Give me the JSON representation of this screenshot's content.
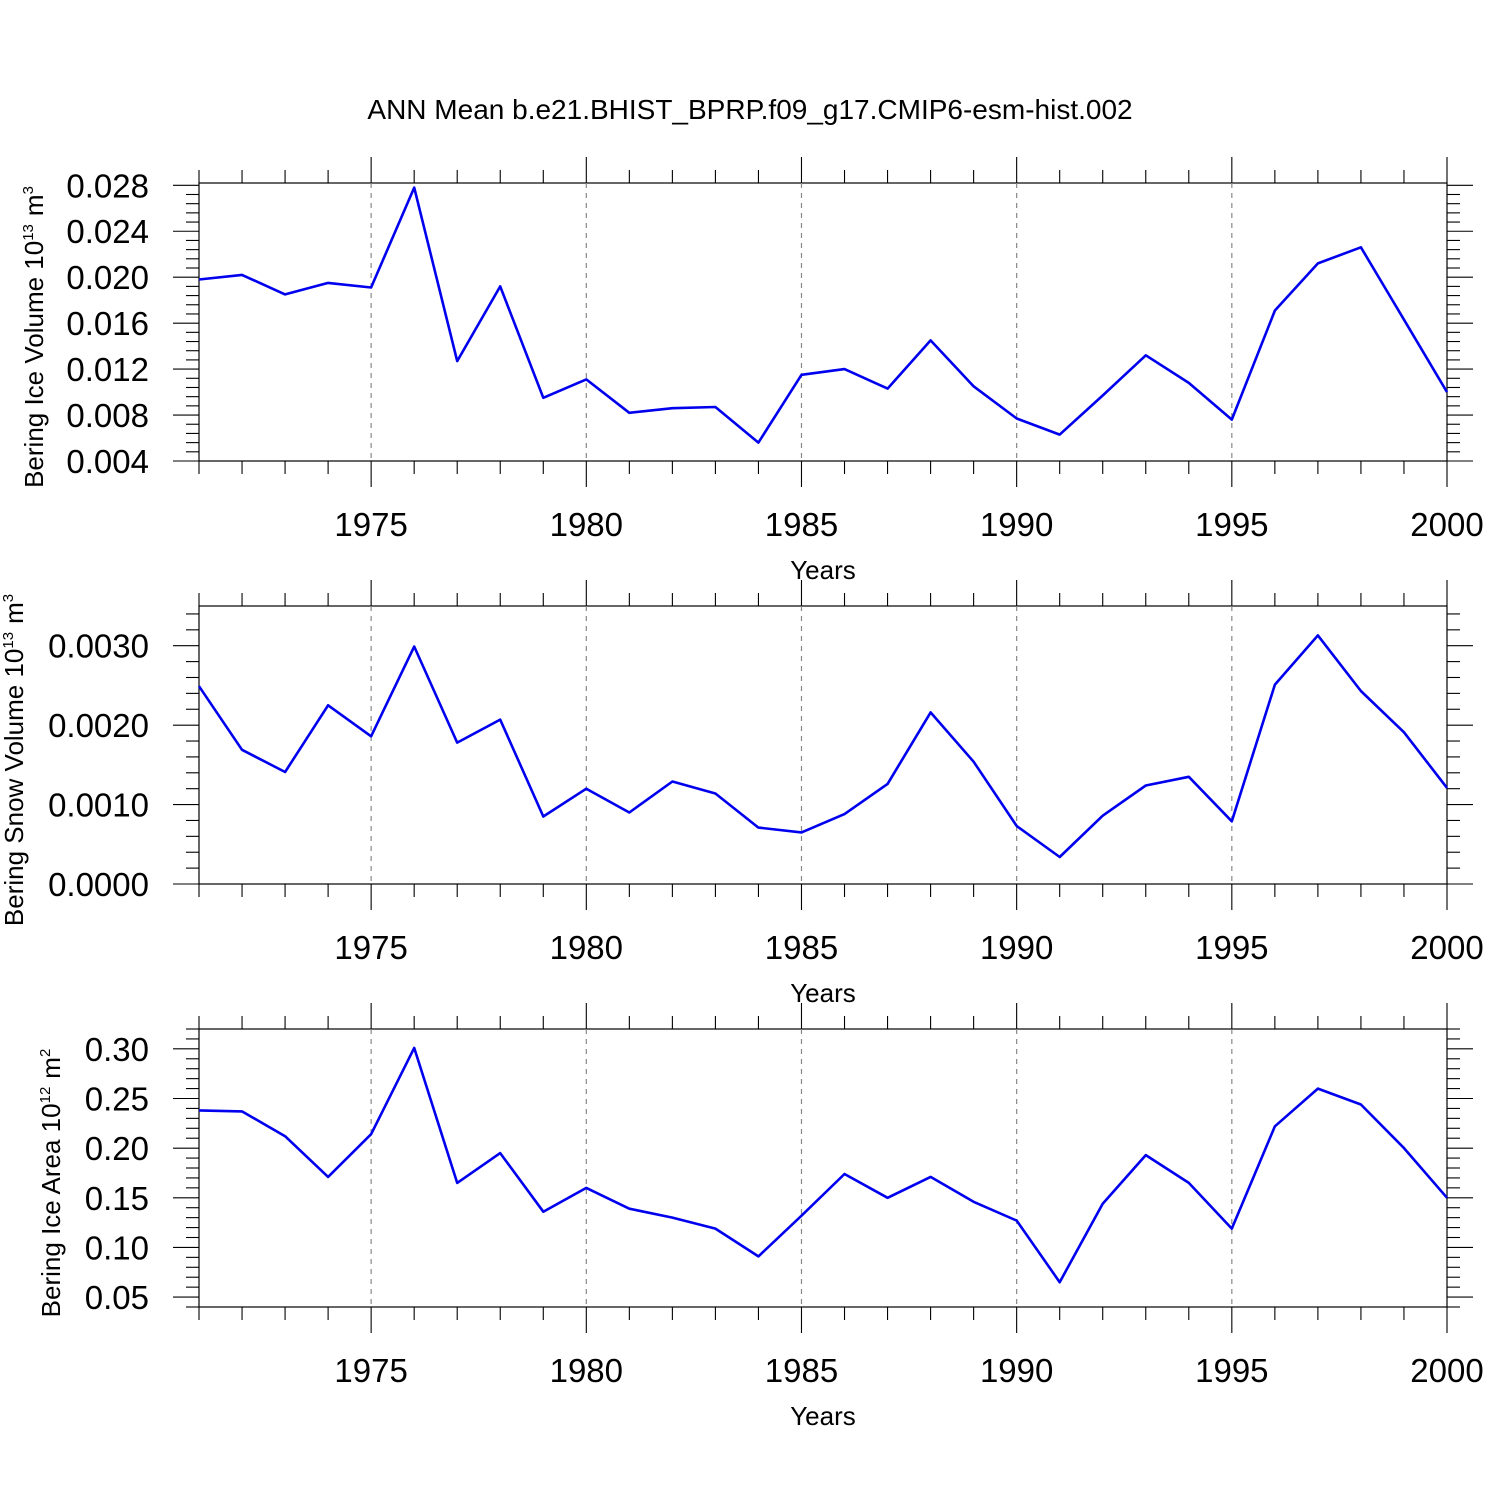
{
  "chart_data": {
    "title": "ANN Mean b.e21.BHIST_BPRP.f09_g17.CMIP6-esm-hist.002",
    "x": [
      1971,
      1972,
      1973,
      1974,
      1975,
      1976,
      1977,
      1978,
      1979,
      1980,
      1981,
      1982,
      1983,
      1984,
      1985,
      1986,
      1987,
      1988,
      1989,
      1990,
      1991,
      1992,
      1993,
      1994,
      1995,
      1996,
      1997,
      1998,
      1999,
      2000
    ],
    "xlim": [
      1971,
      2000
    ],
    "xticks": [
      "1975",
      "1980",
      "1985",
      "1990",
      "1995",
      "2000"
    ],
    "color": "#0000ee",
    "panels": [
      {
        "type": "line",
        "name": "Bering Ice Volume",
        "ylabel": "Bering Ice Volume 10",
        "ylabel_exp": "13",
        "ylabel_unit": "m",
        "ylabel_unit_exp": "3",
        "xlabel": "Years",
        "ylim": [
          0.004,
          0.0282
        ],
        "yticks": [
          "0.004",
          "0.008",
          "0.012",
          "0.016",
          "0.020",
          "0.024",
          "0.028"
        ],
        "values": [
          0.0198,
          0.0202,
          0.0185,
          0.0195,
          0.0191,
          0.0278,
          0.0127,
          0.0192,
          0.0095,
          0.0111,
          0.0082,
          0.0086,
          0.0087,
          0.0056,
          0.0115,
          0.012,
          0.0103,
          0.0145,
          0.0105,
          0.0077,
          0.0063,
          0.0097,
          0.0132,
          0.0108,
          0.0076,
          0.0171,
          0.0212,
          0.0226,
          0.0163,
          0.01
        ]
      },
      {
        "type": "line",
        "name": "Bering Snow Volume",
        "ylabel": "Bering Snow Volume 10",
        "ylabel_exp": "13",
        "ylabel_unit": "m",
        "ylabel_unit_exp": "3",
        "xlabel": "Years",
        "ylim": [
          0.0,
          0.0035
        ],
        "yticks": [
          "0.0000",
          "0.0010",
          "0.0020",
          "0.0030"
        ],
        "values": [
          0.00249,
          0.00169,
          0.00141,
          0.00225,
          0.00186,
          0.00299,
          0.00178,
          0.00207,
          0.00085,
          0.0012,
          0.0009,
          0.00129,
          0.00114,
          0.00071,
          0.00065,
          0.00088,
          0.00126,
          0.00216,
          0.00154,
          0.00073,
          0.00034,
          0.00086,
          0.00124,
          0.00135,
          0.00079,
          0.00251,
          0.00313,
          0.00243,
          0.00191,
          0.00121
        ]
      },
      {
        "type": "line",
        "name": "Bering Ice Area",
        "ylabel": "Bering Ice Area 10",
        "ylabel_exp": "12",
        "ylabel_unit": "m",
        "ylabel_unit_exp": "2",
        "xlabel": "Years",
        "ylim": [
          0.04,
          0.32
        ],
        "yticks": [
          "0.05",
          "0.10",
          "0.15",
          "0.20",
          "0.25",
          "0.30"
        ],
        "values": [
          0.238,
          0.237,
          0.212,
          0.171,
          0.214,
          0.301,
          0.165,
          0.195,
          0.136,
          0.16,
          0.139,
          0.13,
          0.119,
          0.091,
          0.132,
          0.174,
          0.15,
          0.171,
          0.146,
          0.127,
          0.065,
          0.144,
          0.193,
          0.165,
          0.119,
          0.222,
          0.26,
          0.244,
          0.2,
          0.15
        ]
      }
    ]
  }
}
